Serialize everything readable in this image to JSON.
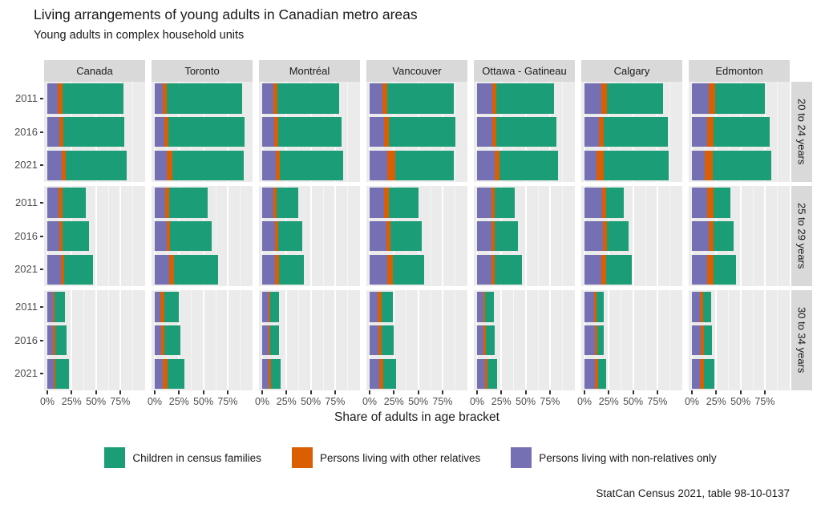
{
  "header": {
    "title": "Living arrangements of young adults in Canadian metro areas",
    "subtitle": "Young adults in complex household units"
  },
  "axis": {
    "x_title": "Share of adults in age bracket",
    "x_tick_labels": [
      "0%",
      "25%",
      "50%",
      "75%"
    ],
    "y_tick_labels": [
      "2011",
      "2016",
      "2021"
    ]
  },
  "caption": {
    "text": "StatCan Census 2021, table 98-10-0137"
  },
  "legend": {
    "items": [
      {
        "label": "Children in census families",
        "color": "#1b9e77"
      },
      {
        "label": "Persons living with other relatives",
        "color": "#d95f02"
      },
      {
        "label": "Persons living with non-relatives only",
        "color": "#7570b3"
      }
    ]
  },
  "chart_data": {
    "type": "bar",
    "orientation": "horizontal",
    "stacked": true,
    "facet_columns": [
      "Canada",
      "Toronto",
      "Montréal",
      "Vancouver",
      "Ottawa - Gatineau",
      "Calgary",
      "Edmonton"
    ],
    "facet_rows": [
      "20 to 24 years",
      "25 to 29 years",
      "30 to 34 years"
    ],
    "years": [
      "2011",
      "2016",
      "2021"
    ],
    "xlim": [
      0,
      100
    ],
    "x_ticks_pct": [
      0,
      25,
      50,
      75
    ],
    "minor_gridlines_pct": [
      12.5,
      37.5,
      62.5,
      87.5
    ],
    "grid": true,
    "legend_position": "bottom",
    "stack_order": [
      "Persons living with non-relatives only",
      "Persons living with other relatives",
      "Children in census families"
    ],
    "series": [
      {
        "name": "Persons living with non-relatives only",
        "color": "#7570b3"
      },
      {
        "name": "Persons living with other relatives",
        "color": "#d95f02"
      },
      {
        "name": "Children in census families",
        "color": "#1b9e77"
      }
    ],
    "values_unit": "percent of adults in age bracket, segments in stack_order [non-relatives, other relatives, children]",
    "values": {
      "20 to 24 years": {
        "Canada": {
          "2011": [
            11,
            4.5,
            62.5
          ],
          "2016": [
            12,
            4.5,
            63
          ],
          "2021": [
            14.5,
            4.5,
            63
          ]
        },
        "Toronto": {
          "2011": [
            8.5,
            4,
            77.5
          ],
          "2016": [
            9.5,
            4.5,
            78.5
          ],
          "2021": [
            12,
            6,
            73.5
          ]
        },
        "Montréal": {
          "2011": [
            11.5,
            4,
            63.5
          ],
          "2016": [
            12.5,
            4,
            65
          ],
          "2021": [
            14,
            4.5,
            64.5
          ]
        },
        "Vancouver": {
          "2011": [
            13,
            5.5,
            68
          ],
          "2016": [
            15,
            5,
            68
          ],
          "2021": [
            18,
            8,
            61
          ]
        },
        "Ottawa - Gatineau": {
          "2011": [
            15.5,
            4,
            60
          ],
          "2016": [
            16,
            4,
            61.5
          ],
          "2021": [
            18,
            5,
            60.5
          ]
        },
        "Calgary": {
          "2011": [
            17,
            6,
            57.5
          ],
          "2016": [
            15,
            5,
            65.5
          ],
          "2021": [
            12.5,
            7,
            67.5
          ]
        },
        "Edmonton": {
          "2011": [
            17,
            7,
            51.5
          ],
          "2016": [
            15.5,
            7,
            57.5
          ],
          "2021": [
            13.5,
            8,
            60
          ]
        }
      },
      "25 to 29 years": {
        "Canada": {
          "2011": [
            11.5,
            4,
            24
          ],
          "2016": [
            12,
            4,
            27
          ],
          "2021": [
            14,
            3.5,
            29.5
          ]
        },
        "Toronto": {
          "2011": [
            11,
            3.5,
            40
          ],
          "2016": [
            12.5,
            3.5,
            43
          ],
          "2021": [
            15,
            5,
            45
          ]
        },
        "Montréal": {
          "2011": [
            11.5,
            3.5,
            22
          ],
          "2016": [
            13,
            3.5,
            25
          ],
          "2021": [
            13.5,
            4,
            25.5
          ]
        },
        "Vancouver": {
          "2011": [
            15,
            4.5,
            31
          ],
          "2016": [
            17,
            4.5,
            32
          ],
          "2021": [
            18.5,
            5.5,
            32.5
          ]
        },
        "Ottawa - Gatineau": {
          "2011": [
            14.5,
            3.5,
            21
          ],
          "2016": [
            15,
            3.5,
            24
          ],
          "2021": [
            14.5,
            4,
            27.5
          ]
        },
        "Calgary": {
          "2011": [
            18,
            4,
            18.5
          ],
          "2016": [
            19,
            4.5,
            22
          ],
          "2021": [
            17,
            5.5,
            26.5
          ]
        },
        "Edmonton": {
          "2011": [
            16,
            6,
            17.5
          ],
          "2016": [
            17.5,
            4.5,
            20.5
          ],
          "2021": [
            16,
            6.5,
            23
          ]
        }
      },
      "30 to 34 years": {
        "Canada": {
          "2011": [
            5.5,
            2,
            10.5
          ],
          "2016": [
            6,
            2,
            11.5
          ],
          "2021": [
            6.5,
            2,
            13.5
          ]
        },
        "Toronto": {
          "2011": [
            6,
            3.5,
            15
          ],
          "2016": [
            6.5,
            3.5,
            16
          ],
          "2021": [
            8.5,
            4.5,
            17.5
          ]
        },
        "Montréal": {
          "2011": [
            6.5,
            2,
            8.5
          ],
          "2016": [
            6.5,
            2,
            9
          ],
          "2021": [
            7,
            2.5,
            9.5
          ]
        },
        "Vancouver": {
          "2011": [
            8.5,
            3.5,
            12
          ],
          "2016": [
            9,
            3.5,
            12.5
          ],
          "2021": [
            10,
            4,
            13.5
          ]
        },
        "Ottawa - Gatineau": {
          "2011": [
            6.5,
            2,
            8.5
          ],
          "2016": [
            7,
            2,
            9.5
          ],
          "2021": [
            8,
            2.5,
            10
          ]
        },
        "Calgary": {
          "2011": [
            10,
            2.5,
            7
          ],
          "2016": [
            10.5,
            2.5,
            7
          ],
          "2021": [
            10.5,
            3.5,
            8
          ]
        },
        "Edmonton": {
          "2011": [
            8.5,
            3,
            8
          ],
          "2016": [
            9,
            3,
            8.5
          ],
          "2021": [
            8.5,
            4,
            10.5
          ]
        }
      }
    }
  }
}
